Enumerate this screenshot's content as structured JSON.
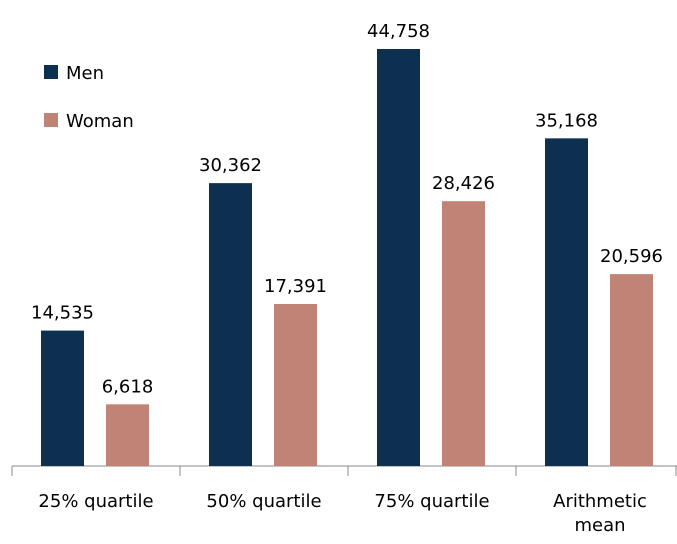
{
  "chart_data": {
    "type": "bar",
    "categories": [
      "25% quartile",
      "50% quartile",
      "75% quartile",
      "Arithmetic mean"
    ],
    "series": [
      {
        "name": "Men",
        "color": "#0d3050",
        "values": [
          14535,
          30362,
          44758,
          35168
        ],
        "value_labels": [
          "14,535",
          "30,362",
          "44,758",
          "35,168"
        ]
      },
      {
        "name": "Woman",
        "color": "#c08477",
        "values": [
          6618,
          17391,
          28426,
          20596
        ],
        "value_labels": [
          "6,618",
          "17,391",
          "28,426",
          "20,596"
        ]
      }
    ],
    "legend": "top-left"
  }
}
